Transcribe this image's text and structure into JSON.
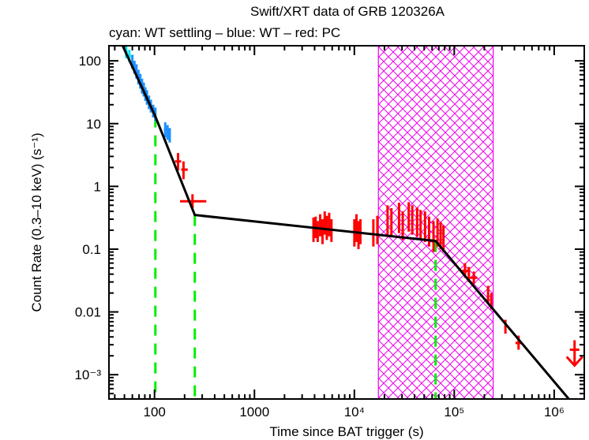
{
  "chart_data": {
    "type": "scatter",
    "title": "Swift/XRT data of GRB 120326A",
    "subtitle": "cyan: WT settling – blue: WT – red: PC",
    "xlabel": "Time since BAT trigger (s)",
    "ylabel": "Count Rate (0.3–10 keV) (s⁻¹)",
    "xscale": "log",
    "yscale": "log",
    "xlim": [
      35,
      2000000
    ],
    "ylim": [
      0.00041,
      174
    ],
    "x_ticks": [
      {
        "value": 100,
        "label": "100"
      },
      {
        "value": 1000,
        "label": "1000"
      },
      {
        "value": 10000,
        "label": "10⁴"
      },
      {
        "value": 100000,
        "label": "10⁵"
      },
      {
        "value": 1000000,
        "label": "10⁶"
      }
    ],
    "y_ticks": [
      {
        "value": 100,
        "label": "100"
      },
      {
        "value": 10,
        "label": "10"
      },
      {
        "value": 1,
        "label": "1"
      },
      {
        "value": 0.1,
        "label": "0.1"
      },
      {
        "value": 0.01,
        "label": "0.01"
      },
      {
        "value": 0.001,
        "label": "10⁻³"
      }
    ],
    "colors": {
      "wt_settling": "#00e5ee",
      "wt": "#1e90ff",
      "pc": "#ff0000",
      "model": "#000000",
      "breaks": "#00ee00",
      "hatch": "#ee00ee"
    },
    "series": [
      {
        "name": "WT settling",
        "color_key": "wt_settling",
        "points": [
          {
            "t": 52,
            "tlo": 50,
            "thi": 54,
            "r": 140,
            "rlo": 110,
            "rhi": 175
          },
          {
            "t": 56,
            "tlo": 54,
            "thi": 58,
            "r": 120,
            "rlo": 95,
            "rhi": 150
          }
        ]
      },
      {
        "name": "WT",
        "color_key": "wt",
        "points": [
          {
            "t": 60,
            "tlo": 59,
            "thi": 61,
            "r": 95,
            "rlo": 75,
            "rhi": 125
          },
          {
            "t": 63,
            "tlo": 62,
            "thi": 64,
            "r": 80,
            "rlo": 62,
            "rhi": 100
          },
          {
            "t": 66,
            "tlo": 65,
            "thi": 67,
            "r": 68,
            "rlo": 52,
            "rhi": 88
          },
          {
            "t": 69,
            "tlo": 68,
            "thi": 70,
            "r": 55,
            "rlo": 42,
            "rhi": 72
          },
          {
            "t": 72,
            "tlo": 71,
            "thi": 73,
            "r": 48,
            "rlo": 36,
            "rhi": 62
          },
          {
            "t": 75,
            "tlo": 74,
            "thi": 76,
            "r": 40,
            "rlo": 30,
            "rhi": 52
          },
          {
            "t": 78,
            "tlo": 77,
            "thi": 79,
            "r": 35,
            "rlo": 27,
            "rhi": 45
          },
          {
            "t": 81,
            "tlo": 80,
            "thi": 82,
            "r": 30,
            "rlo": 23,
            "rhi": 38
          },
          {
            "t": 84,
            "tlo": 83,
            "thi": 85,
            "r": 27,
            "rlo": 20,
            "rhi": 34
          },
          {
            "t": 88,
            "tlo": 86,
            "thi": 90,
            "r": 22,
            "rlo": 17,
            "rhi": 28
          },
          {
            "t": 92,
            "tlo": 90,
            "thi": 94,
            "r": 19,
            "rlo": 15,
            "rhi": 24
          },
          {
            "t": 97,
            "tlo": 95,
            "thi": 99,
            "r": 16,
            "rlo": 12.5,
            "rhi": 20
          },
          {
            "t": 102,
            "tlo": 100,
            "thi": 104,
            "r": 14,
            "rlo": 11,
            "rhi": 18
          },
          {
            "t": 128,
            "tlo": 124,
            "thi": 132,
            "r": 8,
            "rlo": 6,
            "rhi": 10.5
          },
          {
            "t": 135,
            "tlo": 132,
            "thi": 138,
            "r": 7,
            "rlo": 5.5,
            "rhi": 9.5
          },
          {
            "t": 142,
            "tlo": 139,
            "thi": 145,
            "r": 6.5,
            "rlo": 5,
            "rhi": 8.5
          }
        ]
      },
      {
        "name": "PC",
        "color_key": "pc",
        "points": [
          {
            "t": 172,
            "tlo": 160,
            "thi": 185,
            "r": 2.5,
            "rlo": 1.8,
            "rhi": 3.4
          },
          {
            "t": 195,
            "tlo": 185,
            "thi": 215,
            "r": 1.85,
            "rlo": 1.3,
            "rhi": 2.5
          },
          {
            "t": 240,
            "tlo": 180,
            "thi": 330,
            "r": 0.58,
            "rlo": 0.45,
            "rhi": 0.75
          },
          {
            "t": 3900,
            "tlo": 3800,
            "thi": 4000,
            "r": 0.2,
            "rlo": 0.13,
            "rhi": 0.32
          },
          {
            "t": 4100,
            "tlo": 4000,
            "thi": 4200,
            "r": 0.22,
            "rlo": 0.15,
            "rhi": 0.33
          },
          {
            "t": 4300,
            "tlo": 4200,
            "thi": 4400,
            "r": 0.19,
            "rlo": 0.13,
            "rhi": 0.28
          },
          {
            "t": 4550,
            "tlo": 4450,
            "thi": 4650,
            "r": 0.24,
            "rlo": 0.16,
            "rhi": 0.36
          },
          {
            "t": 4800,
            "tlo": 4700,
            "thi": 4900,
            "r": 0.2,
            "rlo": 0.12,
            "rhi": 0.3
          },
          {
            "t": 5050,
            "tlo": 4950,
            "thi": 5150,
            "r": 0.26,
            "rlo": 0.17,
            "rhi": 0.4
          },
          {
            "t": 5300,
            "tlo": 5200,
            "thi": 5400,
            "r": 0.22,
            "rlo": 0.14,
            "rhi": 0.34
          },
          {
            "t": 5600,
            "tlo": 5500,
            "thi": 5700,
            "r": 0.25,
            "rlo": 0.16,
            "rhi": 0.38
          },
          {
            "t": 5900,
            "tlo": 5800,
            "thi": 6000,
            "r": 0.2,
            "rlo": 0.13,
            "rhi": 0.3
          },
          {
            "t": 10000,
            "tlo": 9800,
            "thi": 10200,
            "r": 0.18,
            "rlo": 0.11,
            "rhi": 0.3
          },
          {
            "t": 10500,
            "tlo": 10300,
            "thi": 10700,
            "r": 0.22,
            "rlo": 0.13,
            "rhi": 0.36
          },
          {
            "t": 11000,
            "tlo": 10800,
            "thi": 11200,
            "r": 0.17,
            "rlo": 0.1,
            "rhi": 0.28
          },
          {
            "t": 11500,
            "tlo": 11300,
            "thi": 11700,
            "r": 0.2,
            "rlo": 0.12,
            "rhi": 0.3
          },
          {
            "t": 15500,
            "tlo": 15200,
            "thi": 15800,
            "r": 0.18,
            "rlo": 0.11,
            "rhi": 0.3
          },
          {
            "t": 17000,
            "tlo": 16700,
            "thi": 17300,
            "r": 0.2,
            "rlo": 0.12,
            "rhi": 0.34
          },
          {
            "t": 21500,
            "tlo": 21000,
            "thi": 22000,
            "r": 0.3,
            "rlo": 0.17,
            "rhi": 0.5
          },
          {
            "t": 23500,
            "tlo": 23000,
            "thi": 24000,
            "r": 0.28,
            "rlo": 0.16,
            "rhi": 0.45
          },
          {
            "t": 28000,
            "tlo": 27500,
            "thi": 28500,
            "r": 0.32,
            "rlo": 0.18,
            "rhi": 0.55
          },
          {
            "t": 30500,
            "tlo": 30000,
            "thi": 31000,
            "r": 0.25,
            "rlo": 0.14,
            "rhi": 0.4
          },
          {
            "t": 35000,
            "tlo": 34300,
            "thi": 35700,
            "r": 0.33,
            "rlo": 0.19,
            "rhi": 0.56
          },
          {
            "t": 38000,
            "tlo": 37300,
            "thi": 38700,
            "r": 0.3,
            "rlo": 0.17,
            "rhi": 0.5
          },
          {
            "t": 42500,
            "tlo": 41800,
            "thi": 43200,
            "r": 0.28,
            "rlo": 0.16,
            "rhi": 0.46
          },
          {
            "t": 46000,
            "tlo": 45300,
            "thi": 46700,
            "r": 0.25,
            "rlo": 0.14,
            "rhi": 0.42
          },
          {
            "t": 51000,
            "tlo": 50200,
            "thi": 51800,
            "r": 0.24,
            "rlo": 0.13,
            "rhi": 0.4
          },
          {
            "t": 56000,
            "tlo": 55200,
            "thi": 56800,
            "r": 0.2,
            "rlo": 0.11,
            "rhi": 0.33
          },
          {
            "t": 62000,
            "tlo": 61000,
            "thi": 63000,
            "r": 0.17,
            "rlo": 0.09,
            "rhi": 0.28
          },
          {
            "t": 68000,
            "tlo": 67000,
            "thi": 69000,
            "r": 0.2,
            "rlo": 0.11,
            "rhi": 0.31
          },
          {
            "t": 73000,
            "tlo": 72000,
            "thi": 74000,
            "r": 0.17,
            "rlo": 0.1,
            "rhi": 0.27
          },
          {
            "t": 78000,
            "tlo": 77000,
            "thi": 79000,
            "r": 0.15,
            "rlo": 0.09,
            "rhi": 0.24
          },
          {
            "t": 128000,
            "tlo": 118000,
            "thi": 138000,
            "r": 0.045,
            "rlo": 0.035,
            "rhi": 0.06
          },
          {
            "t": 140000,
            "tlo": 136000,
            "thi": 144000,
            "r": 0.04,
            "rlo": 0.03,
            "rhi": 0.052
          },
          {
            "t": 157000,
            "tlo": 145000,
            "thi": 170000,
            "r": 0.035,
            "rlo": 0.028,
            "rhi": 0.044
          },
          {
            "t": 218000,
            "tlo": 214000,
            "thi": 222000,
            "r": 0.019,
            "rlo": 0.014,
            "rhi": 0.026
          },
          {
            "t": 235000,
            "tlo": 230000,
            "thi": 240000,
            "r": 0.015,
            "rlo": 0.011,
            "rhi": 0.02
          },
          {
            "t": 325000,
            "tlo": 320000,
            "thi": 330000,
            "r": 0.0058,
            "rlo": 0.0045,
            "rhi": 0.0075
          },
          {
            "t": 440000,
            "tlo": 410000,
            "thi": 470000,
            "r": 0.0032,
            "rlo": 0.0025,
            "rhi": 0.0042
          }
        ],
        "upper_limits": [
          {
            "t": 1600000,
            "r": 0.0025
          }
        ]
      }
    ],
    "model": {
      "name": "Broken power-law fit",
      "break_points": [
        {
          "t": 48,
          "r": 174
        },
        {
          "t": 102,
          "r": 13
        },
        {
          "t": 253,
          "r": 0.35
        },
        {
          "t": 65000,
          "r": 0.135
        },
        {
          "t": 1400000,
          "r": 0.00041
        }
      ]
    },
    "break_times": [
      102,
      253,
      65000
    ],
    "hatched_interval": {
      "t_start": 17400,
      "t_end": 245000
    }
  }
}
